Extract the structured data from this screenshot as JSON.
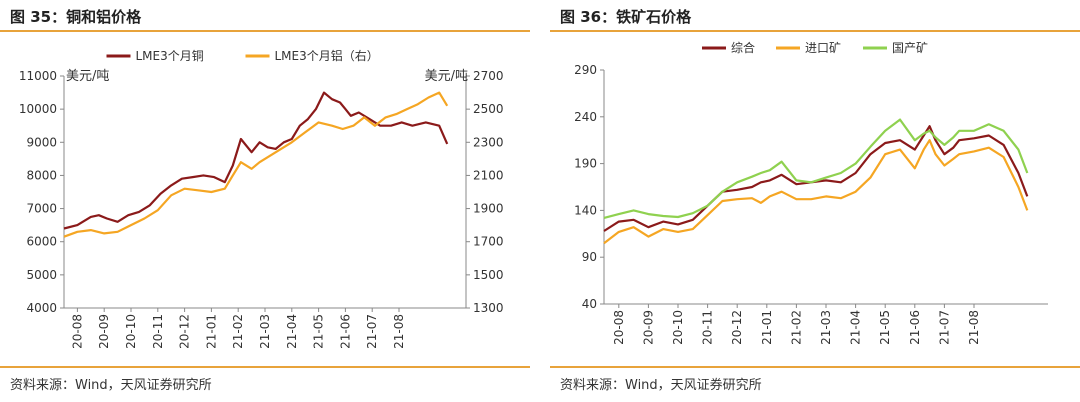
{
  "panels": {
    "left": {
      "title": "图 35：铜和铝价格",
      "source": "资料来源：Wind，天风证券研究所"
    },
    "right": {
      "title": "图 36：铁矿石价格",
      "source": "资料来源：Wind，天风证券研究所"
    }
  },
  "chart_data": [
    {
      "type": "line",
      "ylabel": "美元/吨",
      "y2label": "美元/吨",
      "ylim": [
        4000,
        11000
      ],
      "yticks": [
        4000,
        5000,
        6000,
        7000,
        8000,
        9000,
        10000,
        11000
      ],
      "y2lim": [
        1300,
        2700
      ],
      "y2ticks": [
        1300,
        1500,
        1700,
        1900,
        2100,
        2300,
        2500,
        2700
      ],
      "xlim": [
        0,
        15
      ],
      "categories": [
        "20-08",
        "20-09",
        "20-10",
        "20-11",
        "20-12",
        "21-01",
        "21-02",
        "21-03",
        "21-04",
        "21-05",
        "21-06",
        "21-07",
        "21-08"
      ],
      "legend_position": "top",
      "grid": false,
      "series": [
        {
          "name": "LME3个月铜",
          "axis": "left",
          "color": "#8b1a1a",
          "x": [
            0,
            0.5,
            1,
            1.3,
            1.6,
            2,
            2.4,
            2.8,
            3.2,
            3.6,
            4,
            4.4,
            4.8,
            5.2,
            5.6,
            6,
            6.3,
            6.6,
            7,
            7.3,
            7.6,
            7.9,
            8.2,
            8.5,
            8.8,
            9.1,
            9.4,
            9.7,
            10,
            10.3,
            10.5,
            10.7,
            11,
            11.4,
            11.8,
            12.2,
            12.6,
            13,
            13.5,
            14,
            14.3
          ],
          "y": [
            6400,
            6500,
            6750,
            6800,
            6700,
            6600,
            6800,
            6900,
            7100,
            7450,
            7700,
            7900,
            7950,
            8000,
            7950,
            7800,
            8300,
            9100,
            8700,
            9000,
            8850,
            8800,
            9000,
            9100,
            9500,
            9700,
            10000,
            10500,
            10300,
            10200,
            10000,
            9800,
            9900,
            9700,
            9500,
            9500,
            9600,
            9500,
            9600,
            9500,
            8950
          ]
        },
        {
          "name": "LME3个月铝（右）",
          "axis": "right",
          "color": "#f5a623",
          "x": [
            0,
            0.5,
            1,
            1.5,
            2,
            2.5,
            3,
            3.5,
            4,
            4.5,
            5,
            5.5,
            6,
            6.3,
            6.6,
            7,
            7.3,
            7.6,
            8,
            8.5,
            9,
            9.5,
            10,
            10.4,
            10.8,
            11.2,
            11.6,
            12,
            12.4,
            12.8,
            13.2,
            13.6,
            14,
            14.3
          ],
          "y": [
            1730,
            1760,
            1770,
            1750,
            1760,
            1800,
            1840,
            1890,
            1980,
            2020,
            2010,
            2000,
            2020,
            2100,
            2180,
            2140,
            2180,
            2210,
            2250,
            2300,
            2360,
            2420,
            2400,
            2380,
            2400,
            2450,
            2400,
            2450,
            2470,
            2500,
            2530,
            2570,
            2600,
            2520
          ]
        }
      ]
    },
    {
      "type": "line",
      "ylim": [
        40,
        290
      ],
      "yticks": [
        40,
        90,
        140,
        190,
        240,
        290
      ],
      "xlim": [
        0,
        15
      ],
      "categories": [
        "20-08",
        "20-09",
        "20-10",
        "20-11",
        "20-12",
        "21-01",
        "21-02",
        "21-03",
        "21-04",
        "21-05",
        "21-06",
        "21-07",
        "21-08"
      ],
      "legend_position": "top",
      "grid": false,
      "series": [
        {
          "name": "综合",
          "color": "#8b1a1a",
          "x": [
            0,
            0.5,
            1,
            1.5,
            2,
            2.5,
            3,
            3.5,
            4,
            4.5,
            5,
            5.3,
            5.6,
            6,
            6.5,
            7,
            7.5,
            8,
            8.5,
            9,
            9.5,
            10,
            10.5,
            10.8,
            11,
            11.2,
            11.5,
            11.8,
            12,
            12.5,
            13,
            13.5,
            14,
            14.3
          ],
          "y": [
            118,
            128,
            130,
            122,
            128,
            125,
            130,
            145,
            160,
            162,
            165,
            170,
            172,
            178,
            168,
            170,
            172,
            170,
            180,
            200,
            212,
            215,
            205,
            220,
            230,
            215,
            200,
            207,
            215,
            217,
            220,
            210,
            180,
            155
          ]
        },
        {
          "name": "进口矿",
          "color": "#f5a623",
          "x": [
            0,
            0.5,
            1,
            1.5,
            2,
            2.5,
            3,
            3.5,
            4,
            4.5,
            5,
            5.3,
            5.6,
            6,
            6.5,
            7,
            7.5,
            8,
            8.5,
            9,
            9.5,
            10,
            10.5,
            10.8,
            11,
            11.2,
            11.5,
            11.8,
            12,
            12.5,
            13,
            13.5,
            14,
            14.3
          ],
          "y": [
            105,
            117,
            122,
            112,
            120,
            117,
            120,
            135,
            150,
            152,
            153,
            148,
            155,
            160,
            152,
            152,
            155,
            153,
            160,
            175,
            200,
            205,
            185,
            205,
            215,
            200,
            188,
            195,
            200,
            203,
            207,
            197,
            165,
            140
          ]
        },
        {
          "name": "国产矿",
          "color": "#8fd14f",
          "x": [
            0,
            0.5,
            1,
            1.5,
            2,
            2.5,
            3,
            3.5,
            4,
            4.5,
            5,
            5.3,
            5.6,
            6,
            6.5,
            7,
            7.5,
            8,
            8.5,
            9,
            9.5,
            10,
            10.5,
            10.8,
            11,
            11.2,
            11.5,
            11.8,
            12,
            12.5,
            13,
            13.5,
            14,
            14.3
          ],
          "y": [
            132,
            136,
            140,
            136,
            134,
            133,
            137,
            145,
            160,
            170,
            176,
            180,
            183,
            192,
            172,
            170,
            175,
            180,
            190,
            208,
            225,
            237,
            215,
            222,
            225,
            218,
            210,
            218,
            225,
            225,
            232,
            225,
            205,
            180
          ]
        }
      ]
    }
  ]
}
